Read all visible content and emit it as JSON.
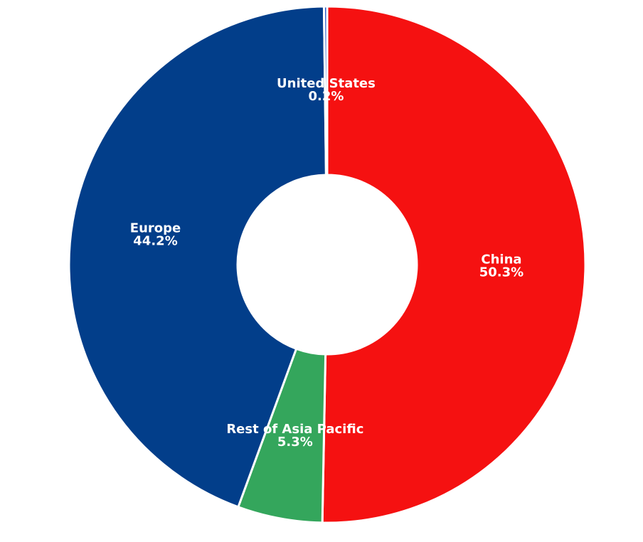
{
  "chart_data": {
    "type": "donut",
    "categories": [
      "China",
      "Rest of Asia Pacific",
      "Europe",
      "United States"
    ],
    "values": [
      50.3,
      5.3,
      44.2,
      0.2
    ],
    "value_labels": [
      "50.3%",
      "5.3%",
      "44.2%",
      "0.2%"
    ],
    "colors": [
      "#f51111",
      "#34a65c",
      "#023e8a",
      "#2a5cc7"
    ]
  }
}
